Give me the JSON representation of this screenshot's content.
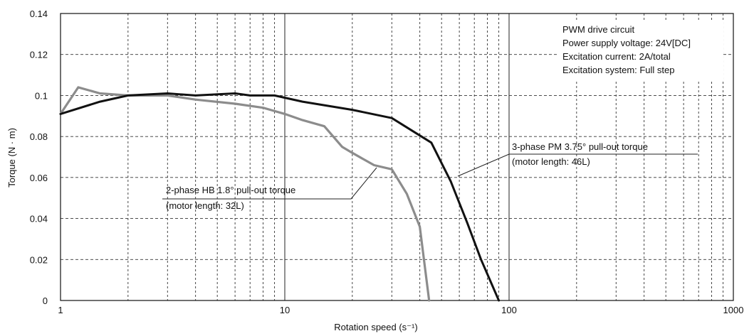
{
  "chart_data": {
    "type": "line",
    "x_scale": "log",
    "xlim": [
      1,
      1000
    ],
    "ylim": [
      0,
      0.14
    ],
    "xlabel": "Rotation speed (s⁻¹)",
    "ylabel": "Torque (N · m)",
    "x_ticks": [
      {
        "value": 1,
        "label": "1"
      },
      {
        "value": 10,
        "label": "10"
      },
      {
        "value": 100,
        "label": "100"
      },
      {
        "value": 1000,
        "label": "1000"
      }
    ],
    "y_ticks": [
      {
        "value": 0,
        "label": "0"
      },
      {
        "value": 0.02,
        "label": "0.02"
      },
      {
        "value": 0.04,
        "label": "0.04"
      },
      {
        "value": 0.06,
        "label": "0.06"
      },
      {
        "value": 0.08,
        "label": "0.08"
      },
      {
        "value": 0.1,
        "label": "0.1"
      },
      {
        "value": 0.12,
        "label": "0.12"
      },
      {
        "value": 0.14,
        "label": "0.14"
      }
    ],
    "grid": true,
    "conditions": [
      "PWM drive circuit",
      "Power supply voltage: 24V[DC]",
      "Excitation current: 2A/total",
      "Excitation system: Full step"
    ],
    "series": [
      {
        "name": "2-phase HB 1.8° pull-out torque",
        "note": "(motor length: 32L)",
        "color": "#8c8c8c",
        "points": [
          [
            1.0,
            0.091
          ],
          [
            1.2,
            0.104
          ],
          [
            1.5,
            0.101
          ],
          [
            2.0,
            0.1
          ],
          [
            3.0,
            0.1
          ],
          [
            4.0,
            0.098
          ],
          [
            6.0,
            0.096
          ],
          [
            8.0,
            0.094
          ],
          [
            10.0,
            0.091
          ],
          [
            12.0,
            0.088
          ],
          [
            15.0,
            0.085
          ],
          [
            18.0,
            0.075
          ],
          [
            20.0,
            0.072
          ],
          [
            25.0,
            0.066
          ],
          [
            30.0,
            0.064
          ],
          [
            35.0,
            0.052
          ],
          [
            40.0,
            0.036
          ],
          [
            44.0,
            0.0
          ]
        ]
      },
      {
        "name": "3-phase PM 3.75° pull-out torque",
        "note": "(motor length: 46L)",
        "color": "#111111",
        "points": [
          [
            1.0,
            0.091
          ],
          [
            1.5,
            0.097
          ],
          [
            2.0,
            0.1
          ],
          [
            3.0,
            0.101
          ],
          [
            4.0,
            0.1
          ],
          [
            6.0,
            0.101
          ],
          [
            7.0,
            0.1
          ],
          [
            9.0,
            0.1
          ],
          [
            12.0,
            0.097
          ],
          [
            20.0,
            0.093
          ],
          [
            30.0,
            0.089
          ],
          [
            45.0,
            0.077
          ],
          [
            55.0,
            0.058
          ],
          [
            65.0,
            0.038
          ],
          [
            75.0,
            0.02
          ],
          [
            90.0,
            0.0
          ]
        ]
      }
    ]
  }
}
